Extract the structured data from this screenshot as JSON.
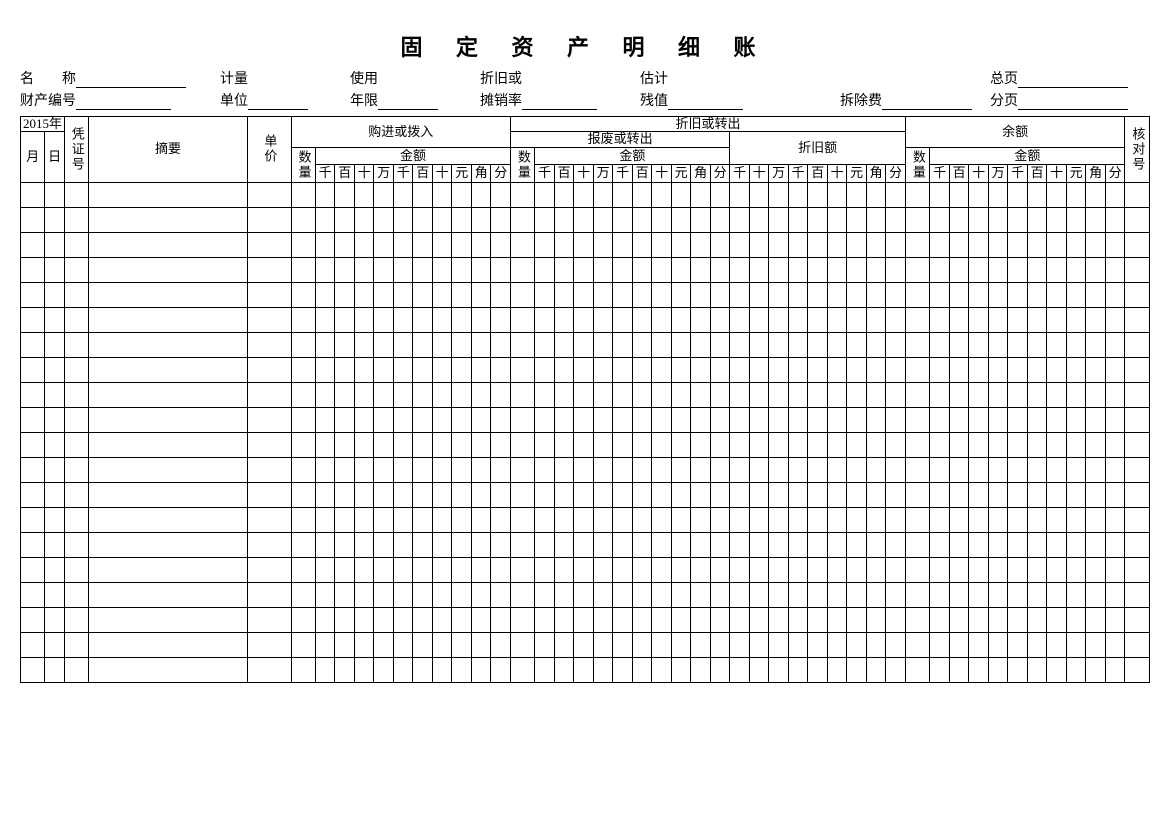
{
  "title": "固 定 资 产 明 细 账",
  "meta": {
    "row1": {
      "name_label": "名　　称",
      "measure_label": "计量",
      "use_label": "使用",
      "deprec_or_label": "折旧或",
      "estimate_label": "估计",
      "totalpage_label": "总页"
    },
    "row2": {
      "asset_no_label": "财产编号",
      "unit_label": "单位",
      "years_label": "年限",
      "amort_rate_label": "摊销率",
      "residual_label": "残值",
      "removal_fee_label": "拆除费",
      "subpage_label": "分页"
    },
    "blank_widths": {
      "name": 110,
      "asset_no": 95,
      "measure": 55,
      "unit": 55,
      "use": 55,
      "years": 55,
      "deprec_or": 0,
      "amort_rate": 75,
      "estimate": 0,
      "residual": 75,
      "removal_fee": 110,
      "totalpage": 110,
      "subpage": 110
    }
  },
  "table": {
    "year_label": "2015年",
    "month_label": "月",
    "day_label": "日",
    "voucher_no_label": "凭证号",
    "summary_label": "摘要",
    "unit_price_label": "单价",
    "purchased_label": "购进或拨入",
    "dep_or_out_label": "折旧或转出",
    "scrap_or_out_label": "报废或转出",
    "dep_amount_label": "折旧额",
    "balance_label": "余额",
    "check_no_label": "核对号",
    "qty_label": "数量",
    "amount_label": "金额",
    "digits10": [
      "千",
      "百",
      "十",
      "万",
      "千",
      "百",
      "十",
      "元",
      "角",
      "分"
    ],
    "digits9": [
      "十",
      "万",
      "千",
      "百",
      "十",
      "元",
      "角",
      "分"
    ],
    "digits9b": [
      "千",
      "百",
      "十",
      "元",
      "角",
      "分"
    ],
    "body_row_count": 20,
    "colwidths": {
      "month": 20,
      "day": 16,
      "voucher": 20,
      "summary": 130,
      "unitprice": 36,
      "qty": 20,
      "digit": 16,
      "check": 20
    }
  },
  "colors": {
    "border": "#000000",
    "bg": "#ffffff",
    "text": "#000000"
  }
}
